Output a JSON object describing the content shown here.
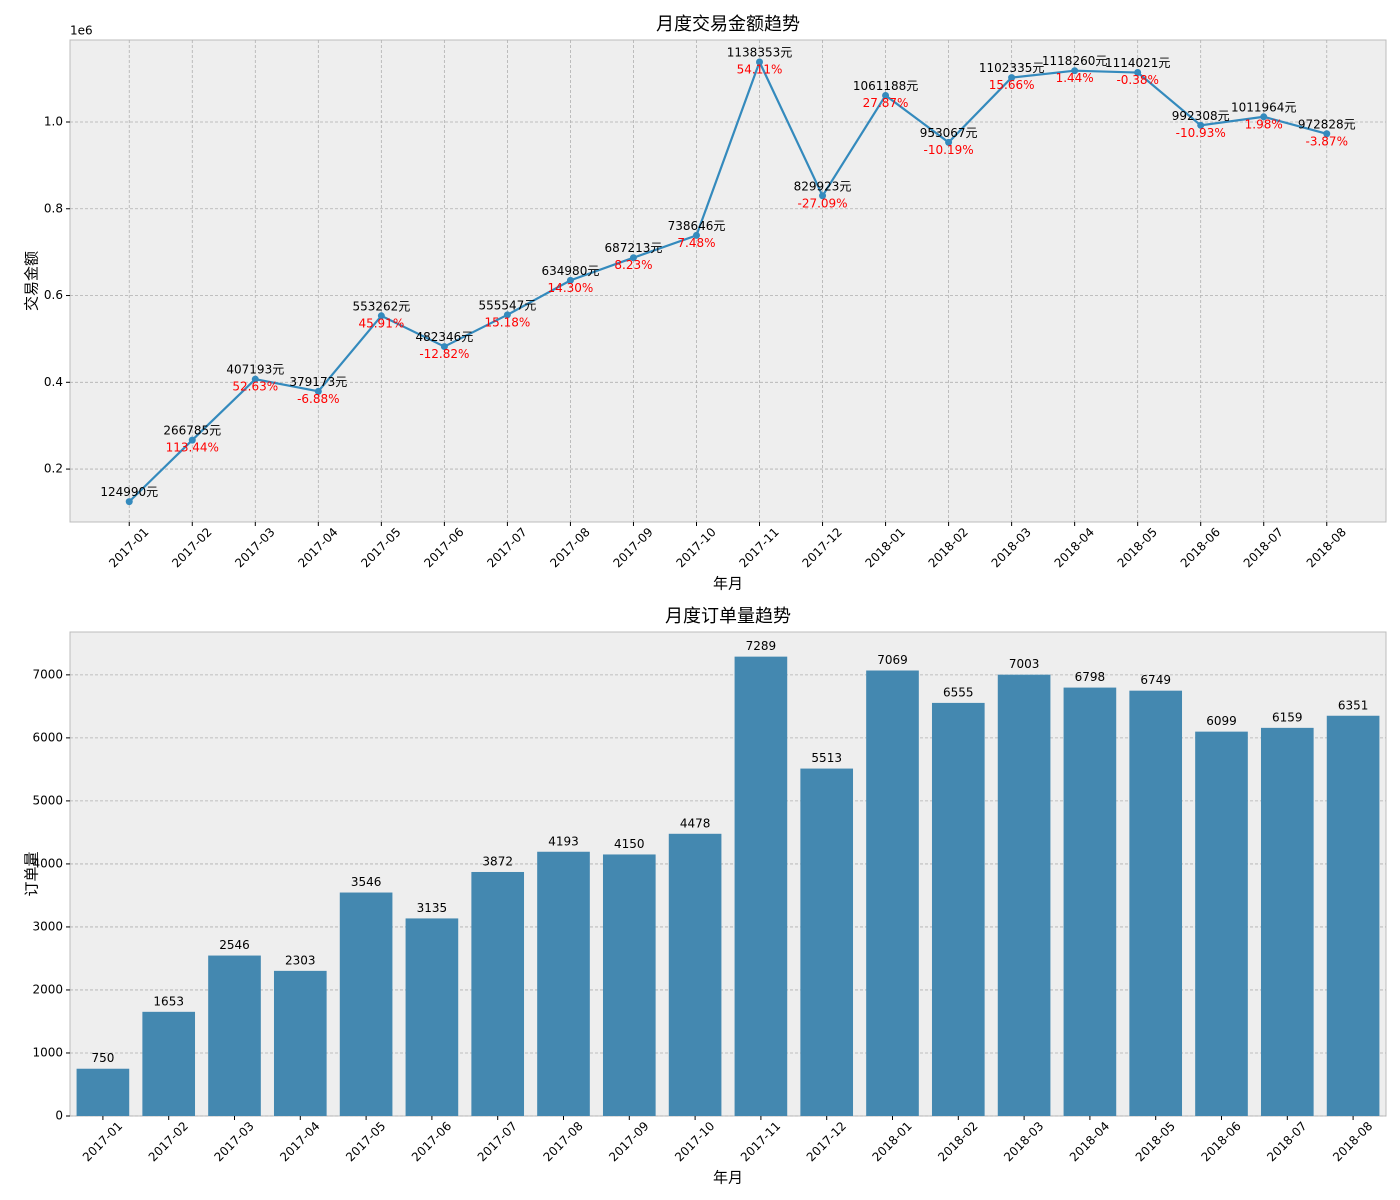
{
  "chart_data": [
    {
      "type": "line",
      "title": "月度交易金额趋势",
      "ylabel": "交易金额",
      "xlabel": "年月",
      "y_offset_label": "1e6",
      "categories": [
        "2017-01",
        "2017-02",
        "2017-03",
        "2017-04",
        "2017-05",
        "2017-06",
        "2017-07",
        "2017-08",
        "2017-09",
        "2017-10",
        "2017-11",
        "2017-12",
        "2018-01",
        "2018-02",
        "2018-03",
        "2018-04",
        "2018-05",
        "2018-06",
        "2018-07",
        "2018-08"
      ],
      "values": [
        124990,
        266785,
        407193,
        379173,
        553262,
        482346,
        555547,
        634980,
        687213,
        738646,
        1138353,
        829923,
        1061188,
        953067,
        1102335,
        1118260,
        1114021,
        992308,
        1011964,
        972828
      ],
      "value_labels": [
        "124990元",
        "266785元",
        "407193元",
        "379173元",
        "553262元",
        "482346元",
        "555547元",
        "634980元",
        "687213元",
        "738646元",
        "1138353元",
        "829923元",
        "1061188元",
        "953067元",
        "1102335元",
        "1118260元",
        "1114021元",
        "992308元",
        "1011964元",
        "972828元"
      ],
      "change_labels": [
        null,
        "113.44%",
        "52.63%",
        "-6.88%",
        "45.91%",
        "-12.82%",
        "15.18%",
        "14.30%",
        "8.23%",
        "7.48%",
        "54.11%",
        "-27.09%",
        "27.87%",
        "-10.19%",
        "15.66%",
        "1.44%",
        "-0.38%",
        "-10.93%",
        "1.98%",
        "-3.87%"
      ],
      "color": "#348abd",
      "change_color": "#ff0000",
      "ylim": [
        78000,
        1189000
      ],
      "yticks": [
        {
          "value": 200000,
          "label": "0.2"
        },
        {
          "value": 400000,
          "label": "0.4"
        },
        {
          "value": 600000,
          "label": "0.6"
        },
        {
          "value": 800000,
          "label": "0.8"
        },
        {
          "value": 1000000,
          "label": "1.0"
        }
      ],
      "grid": "both"
    },
    {
      "type": "bar",
      "title": "月度订单量趋势",
      "ylabel": "订单量",
      "xlabel": "年月",
      "categories": [
        "2017-01",
        "2017-02",
        "2017-03",
        "2017-04",
        "2017-05",
        "2017-06",
        "2017-07",
        "2017-08",
        "2017-09",
        "2017-10",
        "2017-11",
        "2017-12",
        "2018-01",
        "2018-02",
        "2018-03",
        "2018-04",
        "2018-05",
        "2018-06",
        "2018-07",
        "2018-08"
      ],
      "values": [
        750,
        1653,
        2546,
        2303,
        3546,
        3135,
        3872,
        4193,
        4150,
        4478,
        7289,
        5513,
        7069,
        6555,
        7003,
        6798,
        6749,
        6099,
        6159,
        6351
      ],
      "color": "#4488b0",
      "ylim": [
        0,
        7680
      ],
      "yticks": [
        0,
        1000,
        2000,
        3000,
        4000,
        5000,
        6000,
        7000
      ],
      "grid": "y"
    }
  ]
}
